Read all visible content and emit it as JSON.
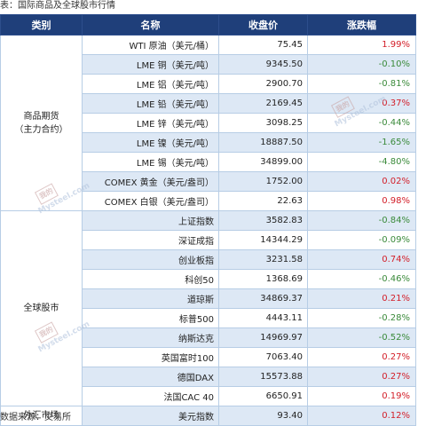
{
  "caption": "表：国际商品及全球股市行情",
  "source": "数据来源：交易所",
  "headers": {
    "category": "类别",
    "name": "名称",
    "close": "收盘价",
    "change": "涨跌幅"
  },
  "groups": {
    "commodities": {
      "line1": "商品期货",
      "line2": "（主力合约）"
    },
    "equities": {
      "label": "全球股市"
    },
    "forex": {
      "label": "外汇市场"
    }
  },
  "rows": [
    {
      "name": "WTI 原油（美元/桶）",
      "close": "75.45",
      "change": "1.99%",
      "direction": "up"
    },
    {
      "name": "LME 铜（美元/吨）",
      "close": "9345.50",
      "change": "-0.10%",
      "direction": "down"
    },
    {
      "name": "LME 铝（美元/吨）",
      "close": "2900.70",
      "change": "-0.81%",
      "direction": "down"
    },
    {
      "name": "LME 铅（美元/吨）",
      "close": "2169.45",
      "change": "0.37%",
      "direction": "up"
    },
    {
      "name": "LME 锌（美元/吨）",
      "close": "3098.25",
      "change": "-0.44%",
      "direction": "down"
    },
    {
      "name": "LME 镍（美元/吨）",
      "close": "18887.50",
      "change": "-1.65%",
      "direction": "down"
    },
    {
      "name": "LME 锡（美元/吨）",
      "close": "34899.00",
      "change": "-4.80%",
      "direction": "down"
    },
    {
      "name": "COMEX 黄金（美元/盎司）",
      "close": "1752.00",
      "change": "0.02%",
      "direction": "up"
    },
    {
      "name": "COMEX 白银（美元/盎司）",
      "close": "22.63",
      "change": "0.98%",
      "direction": "up"
    },
    {
      "name": "上证指数",
      "close": "3582.83",
      "change": "-0.84%",
      "direction": "down"
    },
    {
      "name": "深证成指",
      "close": "14344.29",
      "change": "-0.09%",
      "direction": "down"
    },
    {
      "name": "创业板指",
      "close": "3231.58",
      "change": "0.74%",
      "direction": "up"
    },
    {
      "name": "科创50",
      "close": "1368.69",
      "change": "-0.46%",
      "direction": "down"
    },
    {
      "name": "道琼斯",
      "close": "34869.37",
      "change": "0.21%",
      "direction": "up"
    },
    {
      "name": "标普500",
      "close": "4443.11",
      "change": "-0.28%",
      "direction": "down"
    },
    {
      "name": "纳斯达克",
      "close": "14969.97",
      "change": "-0.52%",
      "direction": "down"
    },
    {
      "name": "英国富时100",
      "close": "7063.40",
      "change": "0.27%",
      "direction": "up"
    },
    {
      "name": "德国DAX",
      "close": "15573.88",
      "change": "0.27%",
      "direction": "up"
    },
    {
      "name": "法国CAC 40",
      "close": "6650.91",
      "change": "0.19%",
      "direction": "up"
    },
    {
      "name": "美元指数",
      "close": "93.40",
      "change": "0.12%",
      "direction": "up"
    }
  ],
  "colors": {
    "header_bg": "#1f3f7a",
    "row_alt": "#dde8f5",
    "up": "#d3202a",
    "down": "#3a8a3a"
  },
  "watermark": {
    "seal": "我的",
    "text": "Mysteel.com"
  }
}
